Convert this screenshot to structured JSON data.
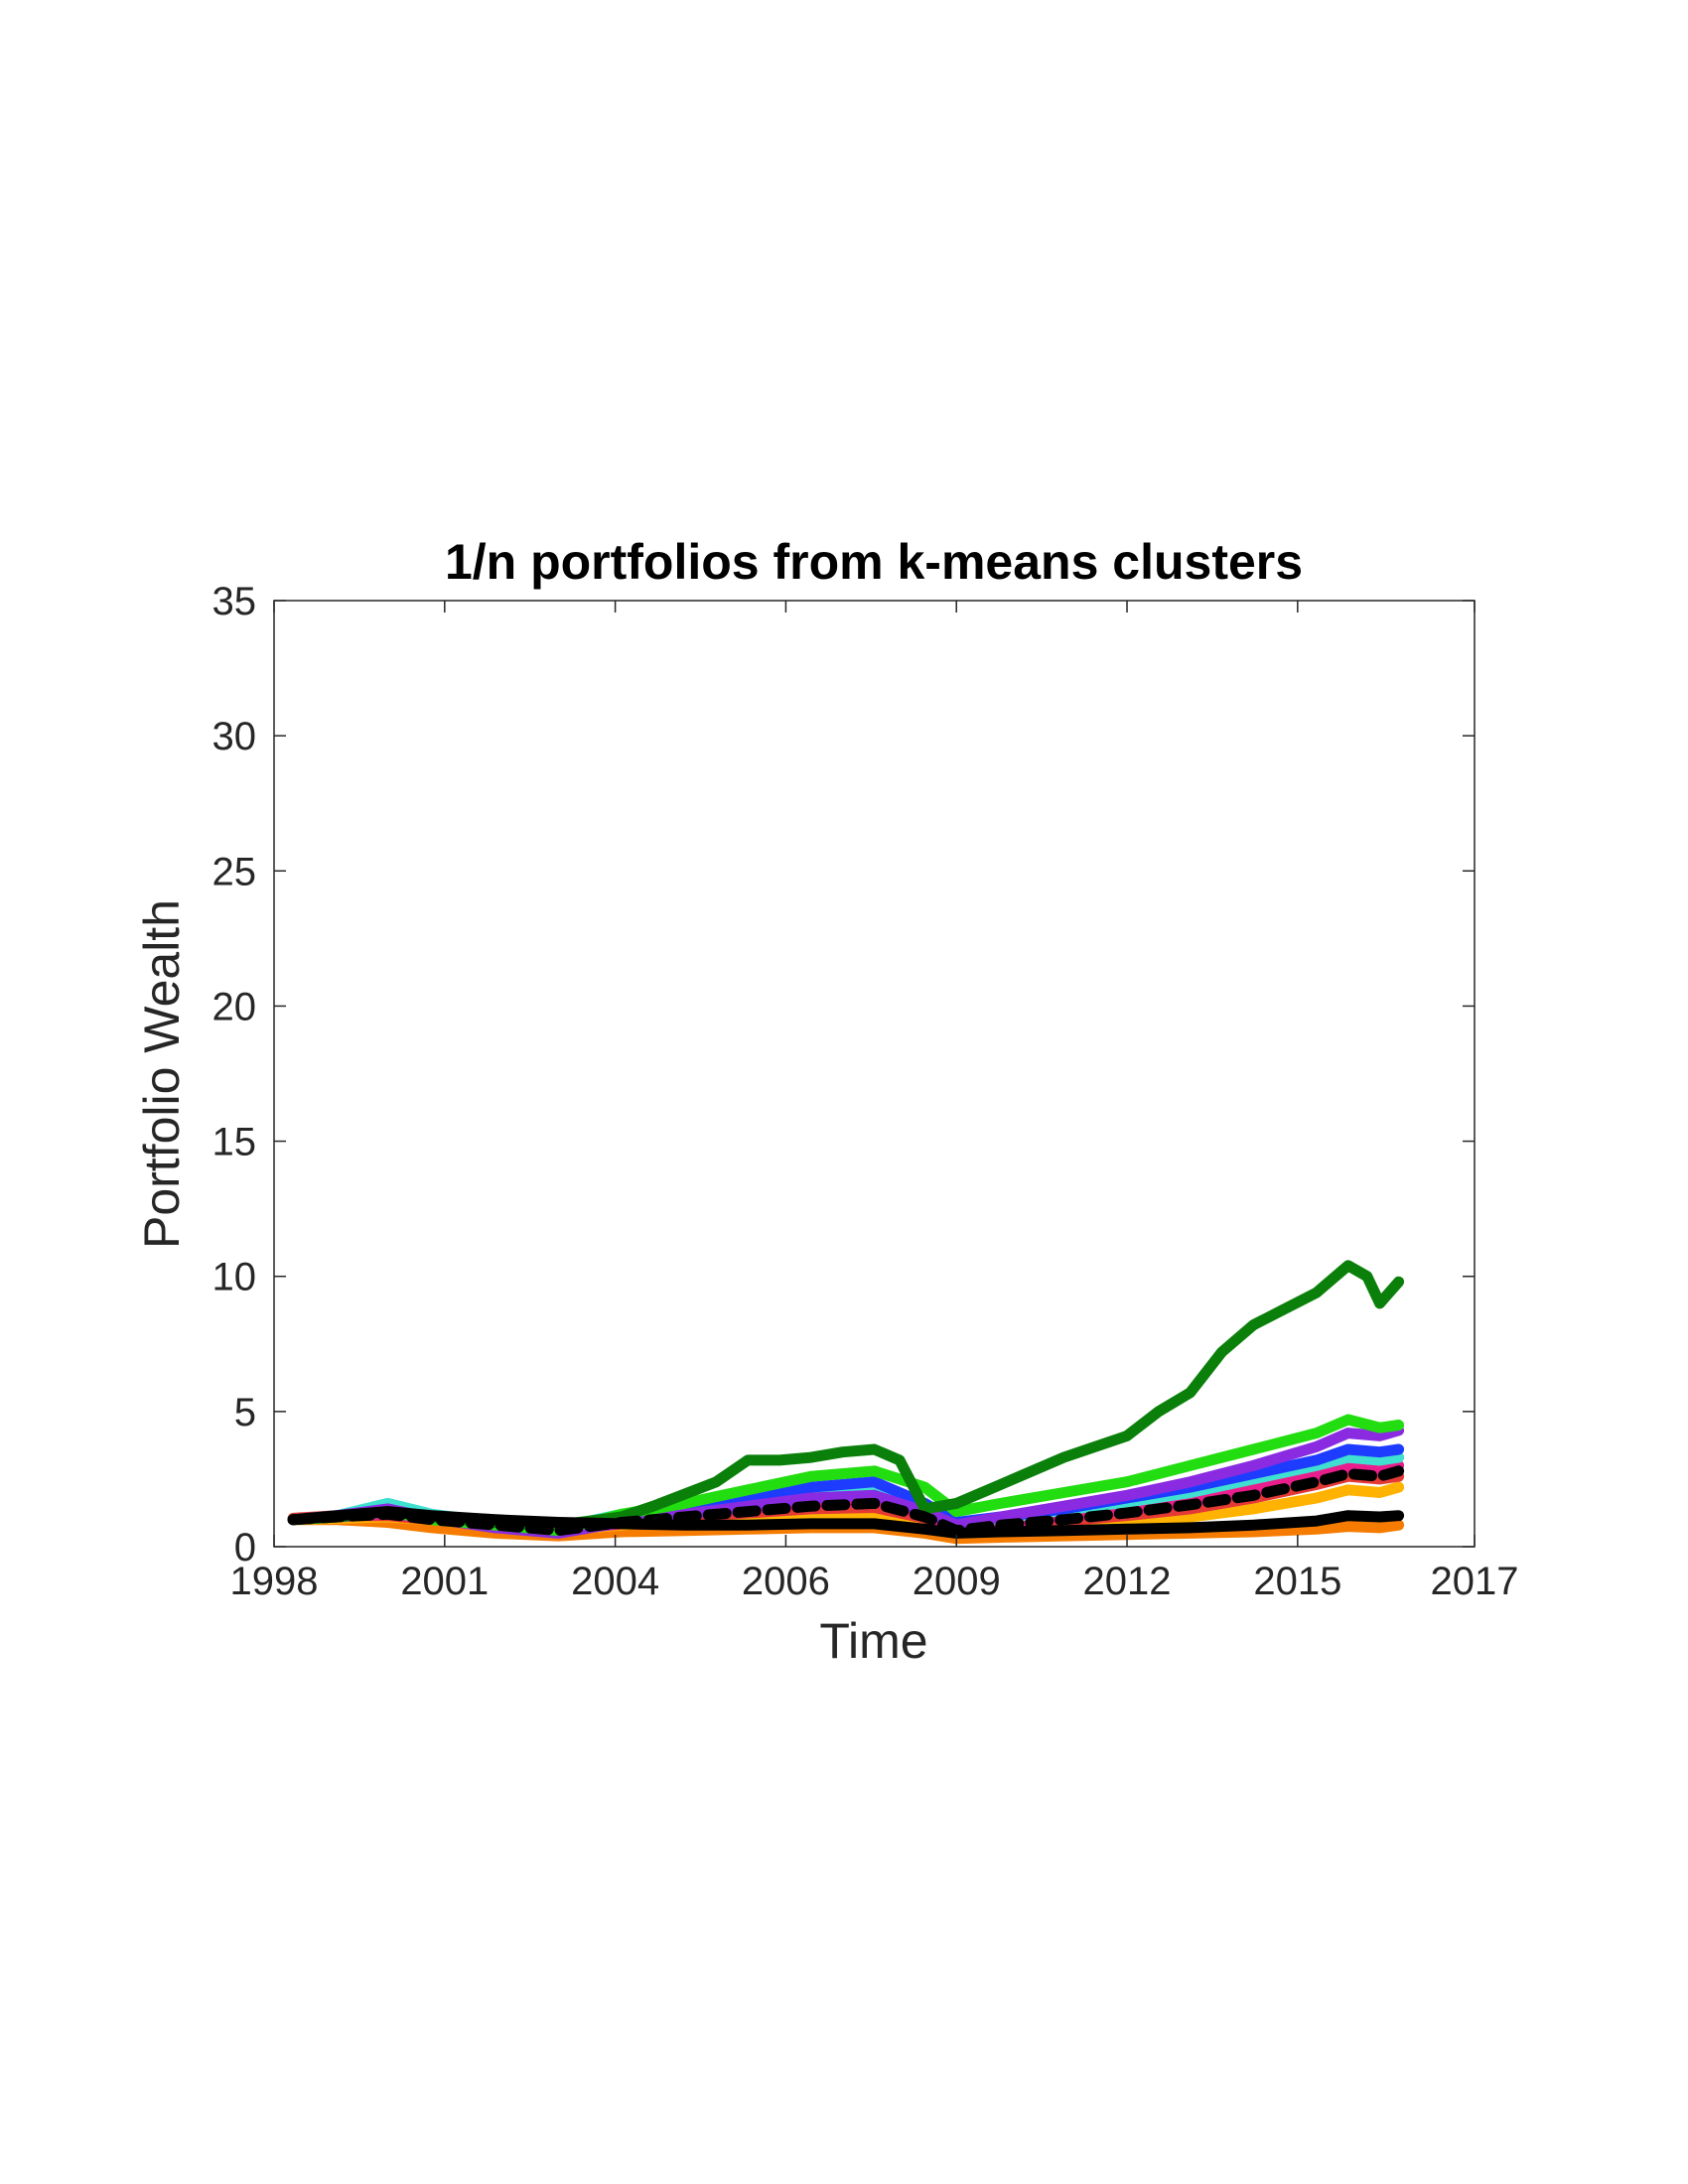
{
  "chart_data": {
    "type": "line",
    "title": "1/n portfolios from k-means clusters",
    "xlabel": "Time",
    "ylabel": "Portfolio Wealth",
    "xlim": [
      1998,
      2017
    ],
    "ylim": [
      0,
      35
    ],
    "x_ticks": [
      1998,
      2000.7,
      2003.4,
      2006.1,
      2008.8,
      2011.5,
      2014.2,
      2017
    ],
    "x_tick_labels": [
      "1998",
      "2001",
      "2004",
      "2006",
      "2009",
      "2012",
      "2015",
      "2017"
    ],
    "y_ticks": [
      0,
      5,
      10,
      15,
      20,
      25,
      30,
      35
    ],
    "y_tick_labels": [
      "0",
      "5",
      "10",
      "15",
      "20",
      "25",
      "30",
      "35"
    ],
    "grid": false,
    "series": [
      {
        "color": "#f57c00",
        "style": "solid",
        "x": [
          1998.3,
          1999,
          1999.8,
          2000.5,
          2001.5,
          2002.5,
          2003.5,
          2004.5,
          2005.5,
          2006.5,
          2007.5,
          2008.3,
          2008.8,
          2009.5,
          2010.5,
          2011.5,
          2012.5,
          2013.5,
          2014.5,
          2015,
          2015.5,
          2015.8
        ],
        "y": [
          1.0,
          1.0,
          0.9,
          0.7,
          0.5,
          0.4,
          0.55,
          0.6,
          0.65,
          0.7,
          0.7,
          0.5,
          0.3,
          0.35,
          0.4,
          0.45,
          0.5,
          0.55,
          0.65,
          0.75,
          0.7,
          0.8
        ]
      },
      {
        "color": "#ffb300",
        "style": "solid",
        "x": [
          1998.3,
          1999,
          1999.8,
          2000.5,
          2001.5,
          2002.5,
          2003.5,
          2004.5,
          2005.5,
          2006.5,
          2007.5,
          2008.3,
          2008.8,
          2009.5,
          2010.5,
          2011.5,
          2012.5,
          2013.5,
          2014.5,
          2015,
          2015.5,
          2015.8
        ],
        "y": [
          1.0,
          1.05,
          1.1,
          1.0,
          0.8,
          0.6,
          0.8,
          1.0,
          1.1,
          1.2,
          1.25,
          0.9,
          0.5,
          0.6,
          0.75,
          0.9,
          1.1,
          1.4,
          1.8,
          2.1,
          2.0,
          2.2
        ]
      },
      {
        "color": "#e53935",
        "style": "solid",
        "x": [
          1998.3,
          1999,
          1999.8,
          2000.5,
          2001.5,
          2002.5,
          2003.5,
          2004.5,
          2005.5,
          2006.5,
          2007.5,
          2008.3,
          2008.8,
          2009.5,
          2010.5,
          2011.5,
          2012.5,
          2013.5,
          2014.5,
          2015,
          2015.5,
          2015.8
        ],
        "y": [
          1.05,
          1.15,
          1.15,
          1.0,
          0.85,
          0.65,
          0.85,
          1.1,
          1.25,
          1.4,
          1.45,
          1.05,
          0.6,
          0.75,
          0.95,
          1.15,
          1.4,
          1.8,
          2.3,
          2.6,
          2.5,
          2.6
        ]
      },
      {
        "color": "#e91e8c",
        "style": "solid",
        "x": [
          1998.3,
          1999,
          1999.8,
          2000.5,
          2001.5,
          2002.5,
          2003.5,
          2004.5,
          2005.5,
          2006.5,
          2007.5,
          2008.3,
          2008.8,
          2009.5,
          2010.5,
          2011.5,
          2012.5,
          2013.5,
          2014.5,
          2015,
          2015.5,
          2015.8
        ],
        "y": [
          1.0,
          1.1,
          1.2,
          1.05,
          0.85,
          0.6,
          0.85,
          1.2,
          1.4,
          1.6,
          1.7,
          1.2,
          0.65,
          0.85,
          1.1,
          1.35,
          1.65,
          2.1,
          2.6,
          2.9,
          2.8,
          3.0
        ]
      },
      {
        "color": "#40e0d0",
        "style": "solid",
        "x": [
          1998.3,
          1999,
          1999.8,
          2000.5,
          2001.5,
          2002.5,
          2003.5,
          2004.5,
          2005.5,
          2006.5,
          2007.5,
          2008.3,
          2008.8,
          2009.5,
          2010.5,
          2011.5,
          2012.5,
          2013.5,
          2014.5,
          2015,
          2015.5,
          2015.8
        ],
        "y": [
          1.0,
          1.15,
          1.6,
          1.2,
          0.9,
          0.7,
          1.2,
          1.55,
          1.8,
          2.0,
          2.1,
          1.5,
          0.85,
          1.05,
          1.35,
          1.65,
          2.0,
          2.5,
          3.0,
          3.3,
          3.2,
          3.3
        ]
      },
      {
        "color": "#1e3cff",
        "style": "solid",
        "x": [
          1998.3,
          1999,
          1999.8,
          2000.5,
          2001.5,
          2002.5,
          2003.5,
          2004.5,
          2005.5,
          2006.5,
          2007.5,
          2008.3,
          2008.8,
          2009.5,
          2010.5,
          2011.5,
          2012.5,
          2013.5,
          2014.5,
          2015,
          2015.5,
          2015.8
        ],
        "y": [
          1.0,
          1.1,
          1.3,
          1.1,
          0.8,
          0.6,
          1.0,
          1.4,
          1.8,
          2.2,
          2.4,
          1.6,
          0.9,
          1.1,
          1.4,
          1.8,
          2.2,
          2.7,
          3.2,
          3.6,
          3.5,
          3.6
        ]
      },
      {
        "color": "#8a2be2",
        "style": "solid",
        "x": [
          1998.3,
          1999,
          1999.8,
          2000.5,
          2001.5,
          2002.5,
          2003.5,
          2004.5,
          2005.5,
          2006.5,
          2007.5,
          2008.3,
          2008.8,
          2009.5,
          2010.5,
          2011.5,
          2012.5,
          2013.5,
          2014.5,
          2015,
          2015.5,
          2015.8
        ],
        "y": [
          1.0,
          1.15,
          1.4,
          1.05,
          0.7,
          0.5,
          0.9,
          1.2,
          1.5,
          1.8,
          1.9,
          1.3,
          0.8,
          1.1,
          1.5,
          1.9,
          2.4,
          3.0,
          3.7,
          4.2,
          4.1,
          4.3
        ]
      },
      {
        "color": "#22dd10",
        "style": "solid",
        "x": [
          1998.3,
          1999,
          1999.8,
          2000.5,
          2001.5,
          2002.5,
          2003.5,
          2004.5,
          2005.5,
          2006.5,
          2007.5,
          2008.3,
          2008.8,
          2009.5,
          2010.5,
          2011.5,
          2012.5,
          2013.5,
          2014.5,
          2015,
          2015.5,
          2015.8
        ],
        "y": [
          1.0,
          1.1,
          1.3,
          1.0,
          0.8,
          0.6,
          1.2,
          1.6,
          2.1,
          2.6,
          2.8,
          2.2,
          1.3,
          1.6,
          2.0,
          2.4,
          3.0,
          3.6,
          4.2,
          4.7,
          4.4,
          4.5
        ]
      },
      {
        "color": "#0a800a",
        "style": "solid",
        "x": [
          1998.3,
          1999,
          1999.8,
          2000.5,
          2001.5,
          2002.5,
          2003.5,
          2004,
          2005,
          2005.5,
          2006,
          2006.5,
          2007,
          2007.5,
          2007.9,
          2008.3,
          2008.8,
          2009.5,
          2010.5,
          2011.5,
          2012,
          2012.5,
          2013,
          2013.5,
          2014,
          2014.5,
          2015,
          2015.3,
          2015.5,
          2015.8
        ],
        "y": [
          1.0,
          1.1,
          1.3,
          1.1,
          0.9,
          0.8,
          1.1,
          1.5,
          2.4,
          3.2,
          3.2,
          3.3,
          3.5,
          3.6,
          3.2,
          1.4,
          1.6,
          2.3,
          3.3,
          4.1,
          5.0,
          5.7,
          7.2,
          8.2,
          8.8,
          9.4,
          10.4,
          10.0,
          9.0,
          9.8
        ]
      },
      {
        "color": "#000000",
        "style": "dashed",
        "x": [
          1998.3,
          1999,
          1999.8,
          2000.5,
          2001.5,
          2002.5,
          2003.5,
          2004.5,
          2005.5,
          2006.5,
          2007.5,
          2008.3,
          2008.8,
          2009.5,
          2010.5,
          2011.5,
          2012.5,
          2013.5,
          2014.5,
          2015,
          2015.5,
          2015.8
        ],
        "y": [
          1.0,
          1.1,
          1.2,
          1.0,
          0.8,
          0.6,
          0.9,
          1.1,
          1.3,
          1.5,
          1.6,
          1.1,
          0.6,
          0.8,
          1.0,
          1.25,
          1.55,
          1.9,
          2.4,
          2.7,
          2.6,
          2.8
        ]
      },
      {
        "color": "#000000",
        "style": "solid",
        "x": [
          1998.3,
          1999,
          1999.8,
          2000.5,
          2001.5,
          2002.5,
          2003.5,
          2004.5,
          2005.5,
          2006.5,
          2007.5,
          2008.3,
          2008.8,
          2009.5,
          2010.5,
          2011.5,
          2012.5,
          2013.5,
          2014.5,
          2015,
          2015.5,
          2015.8
        ],
        "y": [
          1.0,
          1.15,
          1.3,
          1.15,
          1.0,
          0.9,
          0.85,
          0.8,
          0.8,
          0.85,
          0.85,
          0.65,
          0.5,
          0.55,
          0.6,
          0.65,
          0.7,
          0.8,
          0.95,
          1.15,
          1.1,
          1.15
        ]
      }
    ]
  }
}
